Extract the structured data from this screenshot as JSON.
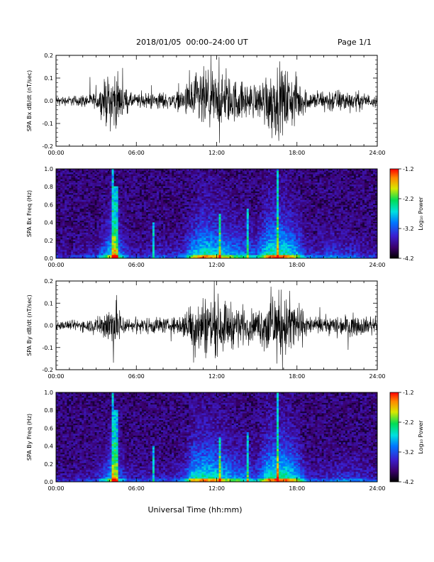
{
  "header": {
    "title": "2018/01/05  00:00–24:00 UT",
    "page": "Page 1/1"
  },
  "xaxis": {
    "label": "Universal Time (hh:mm)",
    "ticks": [
      "00:00",
      "06:00",
      "12:00",
      "18:00",
      "24:00"
    ],
    "range_hours": [
      0,
      24
    ]
  },
  "colorbar": {
    "label": "Log₁₀ Power",
    "ticks": [
      "-1.2",
      "-2.2",
      "-3.2",
      "-4.2"
    ],
    "range": [
      -4.2,
      -1.2
    ]
  },
  "chart_data": [
    {
      "type": "line",
      "ylabel": "SPA Bx dB/dt (nT/sec)",
      "yticks": [
        "0.2",
        "0.1",
        "0.0",
        "-0.1",
        "-0.2"
      ],
      "ylim": [
        -0.2,
        0.2
      ],
      "series": [
        {
          "x_hours": [
            0,
            1,
            2,
            3,
            3.8,
            4.3,
            4.8,
            5.5,
            6.5,
            7.5,
            8.5,
            9.5,
            10.2,
            11,
            12,
            13,
            14,
            15,
            15.8,
            16.5,
            17.2,
            18,
            18.8,
            19.5,
            20.5,
            21.5,
            22.5,
            23.5
          ],
          "amplitude": [
            0.03,
            0.03,
            0.04,
            0.05,
            0.15,
            0.2,
            0.12,
            0.05,
            0.04,
            0.06,
            0.05,
            0.07,
            0.16,
            0.2,
            0.18,
            0.15,
            0.12,
            0.1,
            0.2,
            0.22,
            0.2,
            0.15,
            0.06,
            0.06,
            0.08,
            0.07,
            0.06,
            0.04
          ]
        }
      ]
    },
    {
      "type": "heatmap",
      "ylabel": "SPA Bx Freq (Hz)",
      "yticks": [
        "1.0",
        "0.8",
        "0.6",
        "0.4",
        "0.2",
        "0.0"
      ],
      "ylim": [
        0,
        1.0
      ],
      "zlabel": "Log₁₀ Power",
      "zlim": [
        -4.2,
        -1.2
      ],
      "features": [
        {
          "x_hours": 4.3,
          "extent_hz": 1.0
        },
        {
          "x_hours": 4.5,
          "extent_hz": 0.8
        },
        {
          "x_hours": 16.5,
          "extent_hz": 1.0
        },
        {
          "x_hours": 14.3,
          "extent_hz": 0.55
        },
        {
          "x_hours": 7.3,
          "extent_hz": 0.4
        },
        {
          "x_hours": 12.2,
          "extent_hz": 0.5
        }
      ]
    },
    {
      "type": "line",
      "ylabel": "SPA By dB/dt (nT/sec)",
      "yticks": [
        "0.2",
        "0.1",
        "0.0",
        "-0.1",
        "-0.2"
      ],
      "ylim": [
        -0.2,
        0.2
      ],
      "series": [
        {
          "x_hours": [
            0,
            1,
            2,
            3,
            3.8,
            4.3,
            4.8,
            5.5,
            6.5,
            7.5,
            8.5,
            9.5,
            10.2,
            11,
            12,
            13,
            14,
            15,
            15.8,
            16.5,
            17.2,
            18,
            18.8,
            19.5,
            20.5,
            21.5,
            22.5,
            23.5
          ],
          "amplitude": [
            0.03,
            0.03,
            0.04,
            0.05,
            0.12,
            0.2,
            0.1,
            0.04,
            0.05,
            0.06,
            0.04,
            0.08,
            0.18,
            0.2,
            0.19,
            0.15,
            0.12,
            0.09,
            0.2,
            0.22,
            0.21,
            0.16,
            0.06,
            0.05,
            0.06,
            0.07,
            0.07,
            0.05
          ]
        }
      ]
    },
    {
      "type": "heatmap",
      "ylabel": "SPA By Freq (Hz)",
      "yticks": [
        "1.0",
        "0.8",
        "0.6",
        "0.4",
        "0.2",
        "0.0"
      ],
      "ylim": [
        0,
        1.0
      ],
      "zlabel": "Log₁₀ Power",
      "zlim": [
        -4.2,
        -1.2
      ],
      "features": [
        {
          "x_hours": 4.3,
          "extent_hz": 1.0
        },
        {
          "x_hours": 4.5,
          "extent_hz": 0.8
        },
        {
          "x_hours": 16.5,
          "extent_hz": 1.0
        },
        {
          "x_hours": 14.3,
          "extent_hz": 0.55
        },
        {
          "x_hours": 7.3,
          "extent_hz": 0.4
        },
        {
          "x_hours": 12.2,
          "extent_hz": 0.5
        }
      ]
    }
  ]
}
